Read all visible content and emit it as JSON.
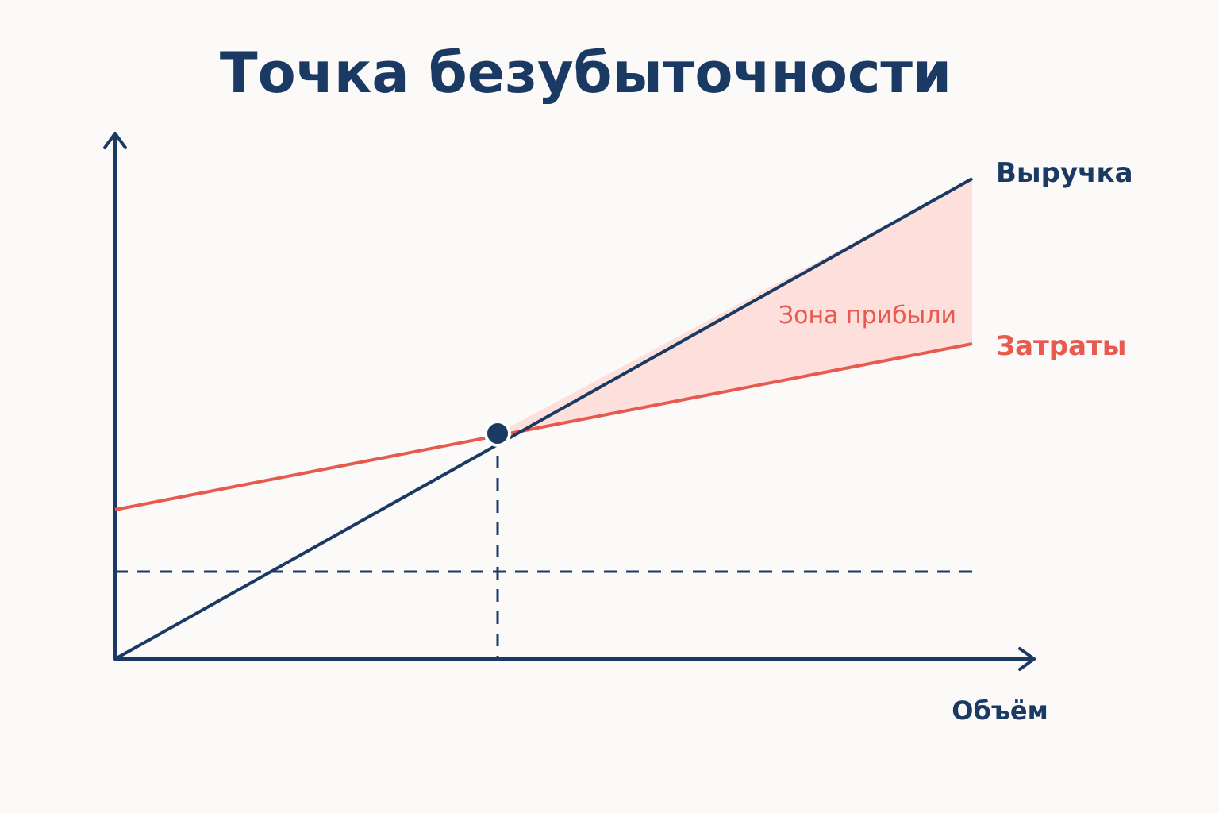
{
  "title": "Точка безубыточности",
  "lines": {
    "revenue": "Выручка",
    "costs": "Затраты"
  },
  "zone": "Зона прибыли",
  "x_axis": "Объём"
}
